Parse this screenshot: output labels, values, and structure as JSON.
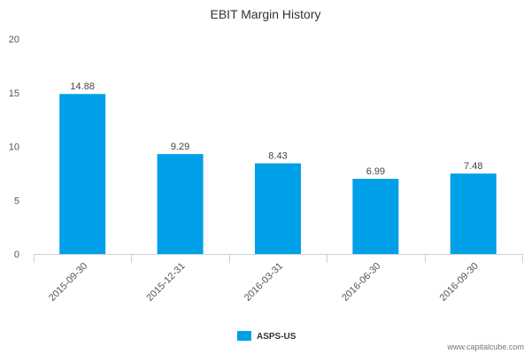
{
  "chart_data": {
    "type": "bar",
    "title": "EBIT Margin History",
    "categories": [
      "2015-09-30",
      "2015-12-31",
      "2016-03-31",
      "2016-06-30",
      "2016-09-30"
    ],
    "series": [
      {
        "name": "ASPS-US",
        "values": [
          14.88,
          9.29,
          8.43,
          6.99,
          7.48
        ],
        "color": "#00a0e8"
      }
    ],
    "data_labels": [
      "14.88",
      "9.29",
      "8.43",
      "6.99",
      "7.48"
    ],
    "y_ticks": [
      0,
      5,
      10,
      15,
      20
    ],
    "ylim": [
      0,
      20
    ],
    "xlabel": "",
    "ylabel": "",
    "grid": false,
    "legend_position": "bottom-center"
  },
  "footer": {
    "credit": "www.capitalcube.com"
  },
  "colors": {
    "bar": "#00a0e8",
    "axis": "#c6d3e3"
  }
}
